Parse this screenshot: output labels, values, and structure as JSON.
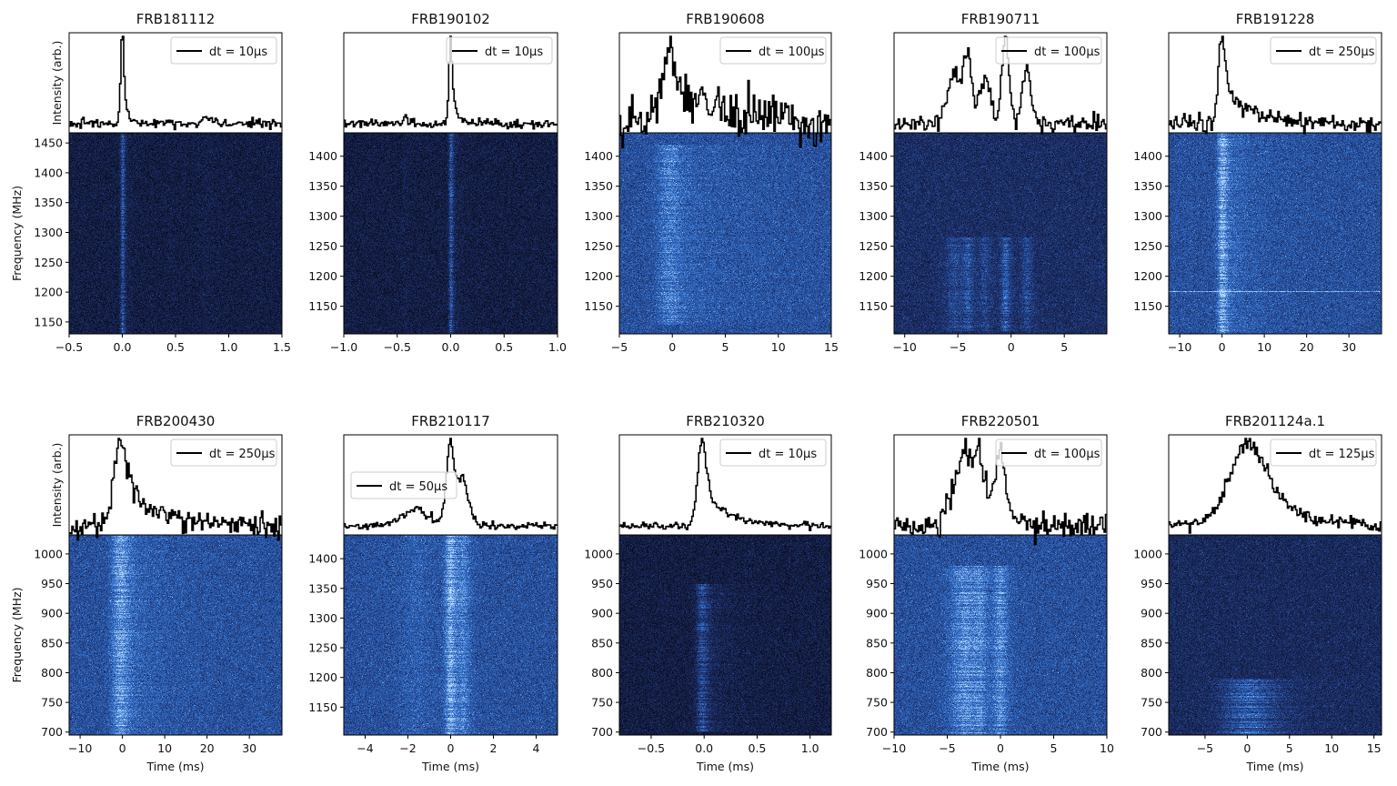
{
  "chart_data": [
    {
      "type": "line",
      "title": "FRB181112",
      "legend": "dt  = 10μs",
      "legend_position": "upper-right",
      "ylabel_profile": "Intensity (arb.)",
      "ylabel": "Frequency (MHz)",
      "xlabel": "",
      "xlim": [
        -0.5,
        1.5
      ],
      "ylim": [
        1130,
        1467
      ],
      "xticks": [
        "−0.5",
        "0.0",
        "0.5",
        "1.0",
        "1.5"
      ],
      "xtick_values": [
        -0.5,
        0,
        0.5,
        1,
        1.5
      ],
      "yticks": [
        1450,
        1400,
        1350,
        1300,
        1250,
        1200,
        1150
      ],
      "background": "dark",
      "band": [
        1130,
        1467
      ],
      "noise": 0.025,
      "components": [
        {
          "t": 0,
          "amp": 1,
          "width": 0.015,
          "tail": 0.04
        },
        {
          "t": 0.8,
          "amp": 0.07,
          "width": 0.06,
          "tail": 0.05
        },
        {
          "t": 0.45,
          "amp": 0.03,
          "width": 0.02,
          "tail": 0.01
        }
      ]
    },
    {
      "type": "line",
      "title": "FRB190102",
      "legend": "dt  = 10μs",
      "legend_position": "upper-right",
      "ylabel_profile": "",
      "ylabel": "",
      "xlabel": "",
      "xlim": [
        -1,
        1
      ],
      "ylim": [
        1104,
        1439
      ],
      "xticks": [
        "−1.0",
        "−0.5",
        "0.0",
        "0.5",
        "1.0"
      ],
      "xtick_values": [
        -1,
        -0.5,
        0,
        0.5,
        1
      ],
      "yticks": [
        1400,
        1350,
        1300,
        1250,
        1200,
        1150
      ],
      "background": "dark",
      "band": [
        1104,
        1439
      ],
      "noise": 0.025,
      "components": [
        {
          "t": 0,
          "amp": 1,
          "width": 0.015,
          "tail": 0.05
        },
        {
          "t": -0.42,
          "amp": 0.08,
          "width": 0.02,
          "tail": 0.02
        }
      ]
    },
    {
      "type": "line",
      "title": "FRB190608",
      "legend": "dt  = 100μs",
      "legend_position": "upper-right",
      "ylabel_profile": "",
      "ylabel": "",
      "xlabel": "",
      "xlim": [
        -5,
        15
      ],
      "ylim": [
        1104,
        1439
      ],
      "xticks": [
        "−5",
        "0",
        "5",
        "10",
        "15"
      ],
      "xtick_values": [
        -5,
        0,
        5,
        10,
        15
      ],
      "yticks": [
        1400,
        1350,
        1300,
        1250,
        1200,
        1150
      ],
      "background": "blue",
      "band": [
        1120,
        1420
      ],
      "noise": 0.1,
      "components": [
        {
          "t": -0.3,
          "amp": 0.55,
          "width": 0.8,
          "tail": 7
        }
      ]
    },
    {
      "type": "line",
      "title": "FRB190711",
      "legend": "dt  = 100μs",
      "legend_position": "upper-right",
      "ylabel_profile": "",
      "ylabel": "",
      "xlabel": "",
      "xlim": [
        -11,
        9
      ],
      "ylim": [
        1104,
        1439
      ],
      "xticks": [
        "−10",
        "−5",
        "0",
        "5"
      ],
      "xtick_values": [
        -10,
        -5,
        0,
        5
      ],
      "yticks": [
        1400,
        1350,
        1300,
        1250,
        1200,
        1150
      ],
      "background": "mid",
      "band": [
        1110,
        1265
      ],
      "noise": 0.04,
      "components": [
        {
          "t": -5.2,
          "amp": 0.45,
          "width": 0.7,
          "tail": 0.3
        },
        {
          "t": -4,
          "amp": 0.55,
          "width": 0.4,
          "tail": 0.3
        },
        {
          "t": -2.4,
          "amp": 0.4,
          "width": 0.5,
          "tail": 0.3
        },
        {
          "t": -0.5,
          "amp": 0.75,
          "width": 0.35,
          "tail": 0.3
        },
        {
          "t": 1.5,
          "amp": 0.45,
          "width": 0.4,
          "tail": 0.4
        }
      ]
    },
    {
      "type": "line",
      "title": "FRB191228",
      "legend": "dt  = 250μs",
      "legend_position": "upper-right",
      "ylabel_profile": "",
      "ylabel": "",
      "xlabel": "",
      "xlim": [
        -12.6,
        37.7
      ],
      "ylim": [
        1104,
        1439
      ],
      "xticks": [
        "−10",
        "0",
        "10",
        "20",
        "30"
      ],
      "xtick_values": [
        -10,
        0,
        10,
        20,
        30
      ],
      "yticks": [
        1400,
        1350,
        1300,
        1250,
        1200,
        1150
      ],
      "background": "blue",
      "band": [
        1104,
        1439
      ],
      "noise": 0.05,
      "components": [
        {
          "t": 0,
          "amp": 1,
          "width": 0.8,
          "tail": 6
        }
      ]
    },
    {
      "type": "line",
      "title": "FRB200430",
      "legend": "dt  = 250μs",
      "legend_position": "upper-right",
      "ylabel_profile": "Intensity (arb.)",
      "ylabel": "Frequency (MHz)",
      "xlabel": "Time (ms)",
      "xlim": [
        -12.6,
        37.7
      ],
      "ylim": [
        695,
        1032
      ],
      "xticks": [
        "−10",
        "0",
        "10",
        "20",
        "30"
      ],
      "xtick_values": [
        -10,
        0,
        10,
        20,
        30
      ],
      "yticks": [
        1000,
        950,
        900,
        850,
        800,
        750,
        700
      ],
      "background": "blue",
      "band": [
        695,
        1032
      ],
      "noise": 0.06,
      "components": [
        {
          "t": -0.5,
          "amp": 0.85,
          "width": 1.5,
          "tail": 9
        }
      ]
    },
    {
      "type": "line",
      "title": "FRB210117",
      "legend": "dt  = 50μs",
      "legend_position": "center-left",
      "ylabel_profile": "",
      "ylabel": "",
      "xlabel": "Time (ms)",
      "xlim": [
        -5,
        5
      ],
      "ylim": [
        1103,
        1440
      ],
      "xticks": [
        "−4",
        "−2",
        "0",
        "2",
        "4"
      ],
      "xtick_values": [
        -4,
        -2,
        0,
        2,
        4
      ],
      "yticks": [
        1400,
        1350,
        1300,
        1250,
        1200,
        1150
      ],
      "background": "blue",
      "band": [
        1103,
        1440
      ],
      "noise": 0.02,
      "components": [
        {
          "t": -1.5,
          "amp": 0.2,
          "width": 0.7,
          "tail": 0.3
        },
        {
          "t": 0,
          "amp": 0.95,
          "width": 0.2,
          "tail": 0.2
        },
        {
          "t": 0.6,
          "amp": 0.55,
          "width": 0.25,
          "tail": 0.3
        }
      ]
    },
    {
      "type": "line",
      "title": "FRB210320",
      "legend": "dt  = 10μs",
      "legend_position": "upper-right",
      "ylabel_profile": "",
      "ylabel": "",
      "xlabel": "Time (ms)",
      "xlim": [
        -0.8,
        1.2
      ],
      "ylim": [
        695,
        1032
      ],
      "xticks": [
        "−0.5",
        "0.0",
        "0.5",
        "1.0"
      ],
      "xtick_values": [
        -0.5,
        0,
        0.5,
        1
      ],
      "yticks": [
        1000,
        950,
        900,
        850,
        800,
        750,
        700
      ],
      "background": "dark",
      "band": [
        700,
        950
      ],
      "noise": 0.02,
      "components": [
        {
          "t": -0.02,
          "amp": 0.9,
          "width": 0.04,
          "tail": 0.22
        }
      ]
    },
    {
      "type": "line",
      "title": "FRB220501",
      "legend": "dt  = 100μs",
      "legend_position": "upper-right",
      "ylabel_profile": "",
      "ylabel": "",
      "xlabel": "Time (ms)",
      "xlim": [
        -10,
        10
      ],
      "ylim": [
        695,
        1032
      ],
      "xticks": [
        "−10",
        "−5",
        "0",
        "5",
        "10"
      ],
      "xtick_values": [
        -10,
        -5,
        0,
        5,
        10
      ],
      "yticks": [
        1000,
        950,
        900,
        850,
        800,
        750,
        700
      ],
      "background": "blue",
      "band": [
        695,
        980
      ],
      "noise": 0.06,
      "components": [
        {
          "t": -3.2,
          "amp": 0.7,
          "width": 1.1,
          "tail": 0.5
        },
        {
          "t": -1.8,
          "amp": 0.45,
          "width": 0.6,
          "tail": 0.4
        },
        {
          "t": 0,
          "amp": 0.7,
          "width": 0.5,
          "tail": 0.8
        }
      ]
    },
    {
      "type": "line",
      "title": "FRB201124a.1",
      "legend": "dt  = 125μs",
      "legend_position": "upper-right",
      "ylabel_profile": "",
      "ylabel": "",
      "xlabel": "Time (ms)",
      "xlim": [
        -9.3,
        15.9
      ],
      "ylim": [
        695,
        1032
      ],
      "xticks": [
        "−5",
        "0",
        "5",
        "10",
        "15"
      ],
      "xtick_values": [
        -5,
        0,
        5,
        10,
        15
      ],
      "yticks": [
        1000,
        950,
        900,
        850,
        800,
        750,
        700
      ],
      "background": "dark-blue",
      "band": [
        695,
        790
      ],
      "noise": 0.04,
      "components": [
        {
          "t": 0.3,
          "amp": 0.9,
          "width": 2.3,
          "tail": 4.5
        }
      ]
    }
  ]
}
